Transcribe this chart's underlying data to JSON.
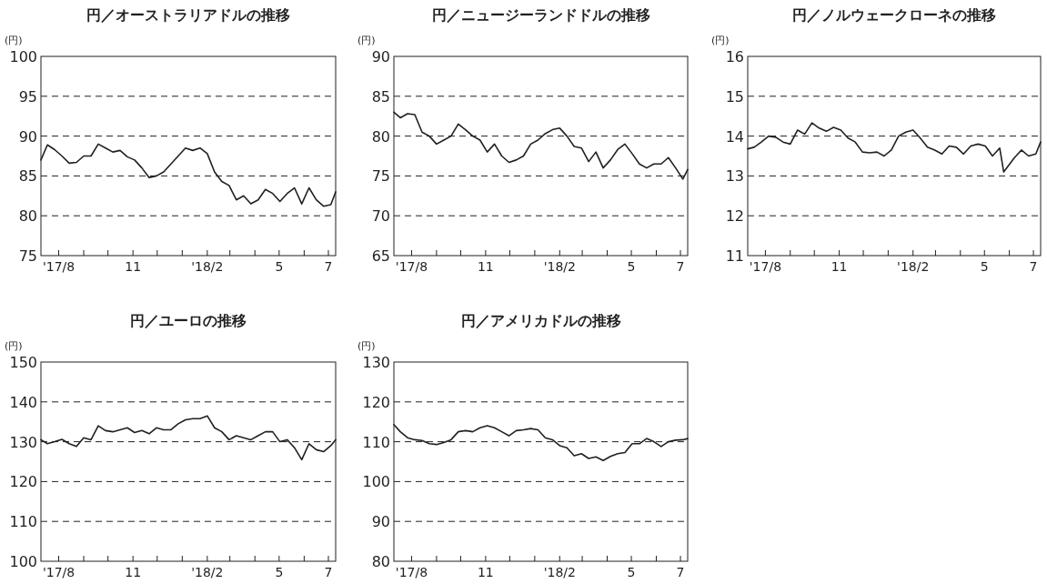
{
  "chart_data": [
    {
      "type": "line",
      "title": "円／オーストラリアドルの推移",
      "ylabel": "(円)",
      "x": [
        "2017-07-24",
        "2017-08-01",
        "2017-08-10",
        "2017-08-19",
        "2017-08-28",
        "2017-09-06",
        "2017-09-15",
        "2017-09-24",
        "2017-10-03",
        "2017-10-12",
        "2017-10-21",
        "2017-10-30",
        "2017-11-08",
        "2017-11-17",
        "2017-11-26",
        "2017-12-05",
        "2017-12-14",
        "2017-12-23",
        "2018-01-01",
        "2018-01-10",
        "2018-01-19",
        "2018-01-28",
        "2018-02-06",
        "2018-02-15",
        "2018-02-24",
        "2018-03-05",
        "2018-03-14",
        "2018-03-23",
        "2018-04-01",
        "2018-04-10",
        "2018-04-19",
        "2018-04-28",
        "2018-05-07",
        "2018-05-16",
        "2018-05-25",
        "2018-06-03",
        "2018-06-12",
        "2018-06-21",
        "2018-06-30",
        "2018-07-09",
        "2018-07-18",
        "2018-07-24"
      ],
      "series": [
        {
          "color": "#231f20",
          "values": [
            87.0,
            88.9,
            88.3,
            87.5,
            86.6,
            86.7,
            87.5,
            87.5,
            89.0,
            88.5,
            88.0,
            88.2,
            87.4,
            87.0,
            86.0,
            84.8,
            85.0,
            85.5,
            86.5,
            87.5,
            88.5,
            88.2,
            88.5,
            87.8,
            85.5,
            84.3,
            83.8,
            82.0,
            82.5,
            81.5,
            82.0,
            83.3,
            82.8,
            81.8,
            82.8,
            83.5,
            81.5,
            83.5,
            82.0,
            81.2,
            81.4,
            83.0
          ]
        }
      ],
      "xlim": [
        "2017-07-24",
        "2018-07-24"
      ],
      "ylim": [
        75,
        100
      ],
      "yticks": [
        75,
        80,
        85,
        90,
        95,
        100
      ],
      "xticks": [
        {
          "value": "2017-08-15",
          "label": "'17/8"
        },
        {
          "value": "2017-09-15",
          "label": null
        },
        {
          "value": "2017-10-15",
          "label": null
        },
        {
          "value": "2017-11-15",
          "label": "11"
        },
        {
          "value": "2017-12-15",
          "label": null
        },
        {
          "value": "2018-01-15",
          "label": null
        },
        {
          "value": "2018-02-15",
          "label": "'18/2"
        },
        {
          "value": "2018-03-15",
          "label": null
        },
        {
          "value": "2018-04-15",
          "label": null
        },
        {
          "value": "2018-05-15",
          "label": "5"
        },
        {
          "value": "2018-06-15",
          "label": null
        },
        {
          "value": "2018-07-15",
          "label": "7"
        }
      ],
      "grid": "y",
      "line_style": "solid"
    },
    {
      "type": "line",
      "title": "円／ニュージーランドドルの推移",
      "ylabel": "(円)",
      "x": [
        "2017-07-24",
        "2017-08-01",
        "2017-08-10",
        "2017-08-19",
        "2017-08-28",
        "2017-09-06",
        "2017-09-15",
        "2017-09-24",
        "2017-10-03",
        "2017-10-12",
        "2017-10-21",
        "2017-10-30",
        "2017-11-08",
        "2017-11-17",
        "2017-11-26",
        "2017-12-05",
        "2017-12-14",
        "2017-12-23",
        "2018-01-01",
        "2018-01-10",
        "2018-01-19",
        "2018-01-28",
        "2018-02-06",
        "2018-02-15",
        "2018-02-24",
        "2018-03-05",
        "2018-03-14",
        "2018-03-23",
        "2018-04-01",
        "2018-04-10",
        "2018-04-19",
        "2018-04-28",
        "2018-05-07",
        "2018-05-16",
        "2018-05-25",
        "2018-06-03",
        "2018-06-12",
        "2018-06-21",
        "2018-06-30",
        "2018-07-09",
        "2018-07-18",
        "2018-07-24"
      ],
      "series": [
        {
          "color": "#231f20",
          "values": [
            83.0,
            82.3,
            82.8,
            82.7,
            80.5,
            80.0,
            79.0,
            79.5,
            80.0,
            81.5,
            80.8,
            80.0,
            79.5,
            78.0,
            79.0,
            77.5,
            76.7,
            77.0,
            77.5,
            79.0,
            79.5,
            80.3,
            80.8,
            81.0,
            80.0,
            78.7,
            78.5,
            76.8,
            78.0,
            76.0,
            77.0,
            78.3,
            79.0,
            77.8,
            76.5,
            76.0,
            76.5,
            76.5,
            77.3,
            76.0,
            74.6,
            75.8
          ]
        }
      ],
      "xlim": [
        "2017-07-24",
        "2018-07-24"
      ],
      "ylim": [
        65,
        90
      ],
      "yticks": [
        65,
        70,
        75,
        80,
        85,
        90
      ],
      "xticks": [
        {
          "value": "2017-08-15",
          "label": "'17/8"
        },
        {
          "value": "2017-09-15",
          "label": null
        },
        {
          "value": "2017-10-15",
          "label": null
        },
        {
          "value": "2017-11-15",
          "label": "11"
        },
        {
          "value": "2017-12-15",
          "label": null
        },
        {
          "value": "2018-01-15",
          "label": null
        },
        {
          "value": "2018-02-15",
          "label": "'18/2"
        },
        {
          "value": "2018-03-15",
          "label": null
        },
        {
          "value": "2018-04-15",
          "label": null
        },
        {
          "value": "2018-05-15",
          "label": "5"
        },
        {
          "value": "2018-06-15",
          "label": null
        },
        {
          "value": "2018-07-15",
          "label": "7"
        }
      ],
      "grid": "y",
      "line_style": "solid"
    },
    {
      "type": "line",
      "title": "円／ノルウェークローネの推移",
      "ylabel": "(円)",
      "x": [
        "2017-07-24",
        "2017-08-01",
        "2017-08-10",
        "2017-08-19",
        "2017-08-28",
        "2017-09-06",
        "2017-09-15",
        "2017-09-24",
        "2017-10-03",
        "2017-10-12",
        "2017-10-21",
        "2017-10-30",
        "2017-11-08",
        "2017-11-17",
        "2017-11-26",
        "2017-12-05",
        "2017-12-14",
        "2017-12-23",
        "2018-01-01",
        "2018-01-10",
        "2018-01-19",
        "2018-01-28",
        "2018-02-06",
        "2018-02-15",
        "2018-02-24",
        "2018-03-05",
        "2018-03-14",
        "2018-03-23",
        "2018-04-01",
        "2018-04-10",
        "2018-04-19",
        "2018-04-28",
        "2018-05-07",
        "2018-05-16",
        "2018-05-25",
        "2018-06-03",
        "2018-06-08",
        "2018-06-21",
        "2018-06-30",
        "2018-07-09",
        "2018-07-18",
        "2018-07-24"
      ],
      "series": [
        {
          "color": "#231f20",
          "values": [
            13.68,
            13.72,
            13.85,
            14.0,
            13.97,
            13.85,
            13.8,
            14.15,
            14.05,
            14.33,
            14.2,
            14.12,
            14.22,
            14.15,
            13.95,
            13.85,
            13.6,
            13.58,
            13.6,
            13.5,
            13.65,
            14.0,
            14.1,
            14.15,
            13.95,
            13.72,
            13.65,
            13.55,
            13.75,
            13.72,
            13.55,
            13.75,
            13.8,
            13.75,
            13.5,
            13.7,
            13.1,
            13.45,
            13.65,
            13.5,
            13.55,
            13.85
          ]
        }
      ],
      "xlim": [
        "2017-07-24",
        "2018-07-24"
      ],
      "ylim": [
        11,
        16
      ],
      "yticks": [
        11,
        12,
        13,
        14,
        15,
        16
      ],
      "xticks": [
        {
          "value": "2017-08-15",
          "label": "'17/8"
        },
        {
          "value": "2017-09-15",
          "label": null
        },
        {
          "value": "2017-10-15",
          "label": null
        },
        {
          "value": "2017-11-15",
          "label": "11"
        },
        {
          "value": "2017-12-15",
          "label": null
        },
        {
          "value": "2018-01-15",
          "label": null
        },
        {
          "value": "2018-02-15",
          "label": "'18/2"
        },
        {
          "value": "2018-03-15",
          "label": null
        },
        {
          "value": "2018-04-15",
          "label": null
        },
        {
          "value": "2018-05-15",
          "label": "5"
        },
        {
          "value": "2018-06-15",
          "label": null
        },
        {
          "value": "2018-07-15",
          "label": "7"
        }
      ],
      "grid": "y",
      "line_style": "solid"
    },
    {
      "type": "line",
      "title": "円／ユーロの推移",
      "ylabel": "(円)",
      "x": [
        "2017-07-24",
        "2017-08-01",
        "2017-08-10",
        "2017-08-19",
        "2017-08-28",
        "2017-09-06",
        "2017-09-15",
        "2017-09-24",
        "2017-10-03",
        "2017-10-12",
        "2017-10-21",
        "2017-10-30",
        "2017-11-08",
        "2017-11-17",
        "2017-11-26",
        "2017-12-05",
        "2017-12-14",
        "2017-12-23",
        "2018-01-01",
        "2018-01-10",
        "2018-01-19",
        "2018-01-28",
        "2018-02-06",
        "2018-02-15",
        "2018-02-24",
        "2018-03-05",
        "2018-03-14",
        "2018-03-23",
        "2018-04-01",
        "2018-04-10",
        "2018-04-19",
        "2018-04-28",
        "2018-05-07",
        "2018-05-16",
        "2018-05-25",
        "2018-06-03",
        "2018-06-12",
        "2018-06-21",
        "2018-06-30",
        "2018-07-09",
        "2018-07-18",
        "2018-07-24"
      ],
      "series": [
        {
          "color": "#231f20",
          "values": [
            130.5,
            129.5,
            130.0,
            130.6,
            129.5,
            128.8,
            131.0,
            130.5,
            134.0,
            132.8,
            132.5,
            133.0,
            133.5,
            132.3,
            132.8,
            132.0,
            133.5,
            133.0,
            133.0,
            134.5,
            135.5,
            135.8,
            135.8,
            136.5,
            133.5,
            132.5,
            130.5,
            131.5,
            131.0,
            130.5,
            131.5,
            132.5,
            132.5,
            130.0,
            130.5,
            128.5,
            125.5,
            129.5,
            128.0,
            127.5,
            129.0,
            130.5
          ]
        }
      ],
      "xlim": [
        "2017-07-24",
        "2018-07-24"
      ],
      "ylim": [
        100,
        150
      ],
      "yticks": [
        100,
        110,
        120,
        130,
        140,
        150
      ],
      "xticks": [
        {
          "value": "2017-08-15",
          "label": "'17/8"
        },
        {
          "value": "2017-09-15",
          "label": null
        },
        {
          "value": "2017-10-15",
          "label": null
        },
        {
          "value": "2017-11-15",
          "label": "11"
        },
        {
          "value": "2017-12-15",
          "label": null
        },
        {
          "value": "2018-01-15",
          "label": null
        },
        {
          "value": "2018-02-15",
          "label": "'18/2"
        },
        {
          "value": "2018-03-15",
          "label": null
        },
        {
          "value": "2018-04-15",
          "label": null
        },
        {
          "value": "2018-05-15",
          "label": "5"
        },
        {
          "value": "2018-06-15",
          "label": null
        },
        {
          "value": "2018-07-15",
          "label": "7"
        }
      ],
      "grid": "y",
      "line_style": "solid"
    },
    {
      "type": "line",
      "title": "円／アメリカドルの推移",
      "ylabel": "(円)",
      "x": [
        "2017-07-24",
        "2017-08-01",
        "2017-08-10",
        "2017-08-19",
        "2017-08-28",
        "2017-09-06",
        "2017-09-15",
        "2017-09-24",
        "2017-10-03",
        "2017-10-12",
        "2017-10-21",
        "2017-10-30",
        "2017-11-08",
        "2017-11-17",
        "2017-11-26",
        "2017-12-05",
        "2017-12-14",
        "2017-12-23",
        "2018-01-01",
        "2018-01-10",
        "2018-01-19",
        "2018-01-28",
        "2018-02-06",
        "2018-02-15",
        "2018-02-24",
        "2018-03-05",
        "2018-03-14",
        "2018-03-23",
        "2018-04-01",
        "2018-04-10",
        "2018-04-19",
        "2018-04-28",
        "2018-05-07",
        "2018-05-16",
        "2018-05-25",
        "2018-06-03",
        "2018-06-12",
        "2018-06-21",
        "2018-06-30",
        "2018-07-09",
        "2018-07-18",
        "2018-07-24"
      ],
      "series": [
        {
          "color": "#231f20",
          "values": [
            114.3,
            112.5,
            111.0,
            110.5,
            110.3,
            109.5,
            109.3,
            109.8,
            110.5,
            112.5,
            112.8,
            112.5,
            113.5,
            114.0,
            113.5,
            112.5,
            111.5,
            112.8,
            113.0,
            113.3,
            113.0,
            111.0,
            110.5,
            109.0,
            108.5,
            106.5,
            107.0,
            105.8,
            106.2,
            105.3,
            106.3,
            107.0,
            107.3,
            109.5,
            109.5,
            110.8,
            110.0,
            108.8,
            110.0,
            110.4,
            110.5,
            110.8
          ]
        }
      ],
      "xlim": [
        "2017-07-24",
        "2018-07-24"
      ],
      "ylim": [
        80,
        130
      ],
      "yticks": [
        80,
        90,
        100,
        110,
        120,
        130
      ],
      "xticks": [
        {
          "value": "2017-08-15",
          "label": "'17/8"
        },
        {
          "value": "2017-09-15",
          "label": null
        },
        {
          "value": "2017-10-15",
          "label": null
        },
        {
          "value": "2017-11-15",
          "label": "11"
        },
        {
          "value": "2017-12-15",
          "label": null
        },
        {
          "value": "2018-01-15",
          "label": null
        },
        {
          "value": "2018-02-15",
          "label": "'18/2"
        },
        {
          "value": "2018-03-15",
          "label": null
        },
        {
          "value": "2018-04-15",
          "label": null
        },
        {
          "value": "2018-05-15",
          "label": "5"
        },
        {
          "value": "2018-06-15",
          "label": null
        },
        {
          "value": "2018-07-15",
          "label": "7"
        }
      ],
      "grid": "y",
      "line_style": "solid"
    }
  ]
}
